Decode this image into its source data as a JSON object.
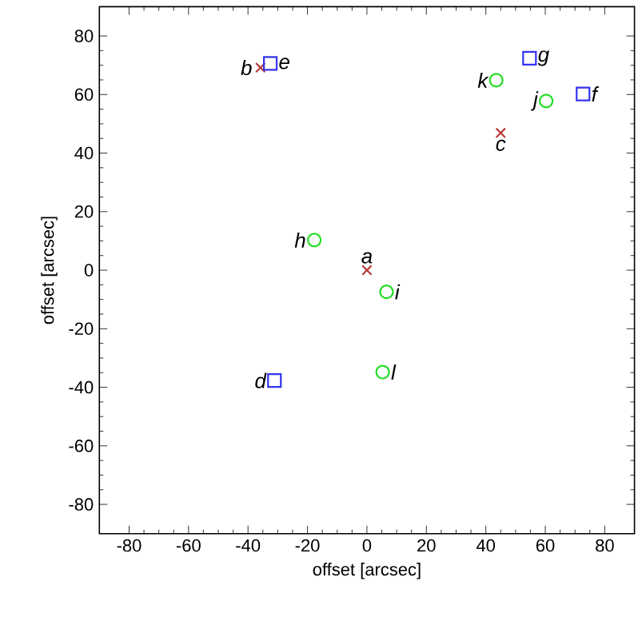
{
  "chart_data": {
    "type": "scatter",
    "xlabel": "offset [arcsec]",
    "ylabel": "offset [arcsec]",
    "xlim": [
      -90,
      90
    ],
    "ylim": [
      -90,
      90
    ],
    "xticks": [
      -80,
      -60,
      -40,
      -20,
      0,
      20,
      40,
      60,
      80
    ],
    "yticks": [
      -80,
      -60,
      -40,
      -20,
      0,
      20,
      40,
      60,
      80
    ],
    "grid": false,
    "series": [
      {
        "color": "#b83c3c",
        "marker": "cross",
        "x": [
          0,
          -35.8,
          45.0
        ],
        "values": [
          0,
          69.2,
          46.9
        ]
      },
      {
        "color": "#3333ee",
        "marker": "square",
        "x": [
          -31.1,
          -32.5,
          72.7,
          54.7
        ],
        "values": [
          -37.7,
          70.6,
          60.2,
          72.4
        ]
      },
      {
        "color": "#22dd22",
        "marker": "circle",
        "x": [
          -17.7,
          6.6,
          60.3,
          43.5,
          5.3
        ],
        "values": [
          10.3,
          -7.4,
          57.8,
          64.9,
          -34.8
        ]
      }
    ],
    "annotations": [
      {
        "text": "a",
        "x": 0,
        "y": 0
      },
      {
        "text": "b",
        "x": -35.8,
        "y": 69.2
      },
      {
        "text": "c",
        "x": 45.0,
        "y": 46.9
      },
      {
        "text": "d",
        "x": -31.1,
        "y": -37.7
      },
      {
        "text": "e",
        "x": -32.5,
        "y": 70.6
      },
      {
        "text": "f",
        "x": 72.7,
        "y": 60.2
      },
      {
        "text": "g",
        "x": 54.7,
        "y": 72.4
      },
      {
        "text": "h",
        "x": -17.7,
        "y": 10.3
      },
      {
        "text": "i",
        "x": 6.6,
        "y": -7.4
      },
      {
        "text": "j",
        "x": 60.3,
        "y": 57.8
      },
      {
        "text": "k",
        "x": 43.5,
        "y": 64.9
      },
      {
        "text": "l",
        "x": 5.3,
        "y": -34.8
      }
    ]
  }
}
